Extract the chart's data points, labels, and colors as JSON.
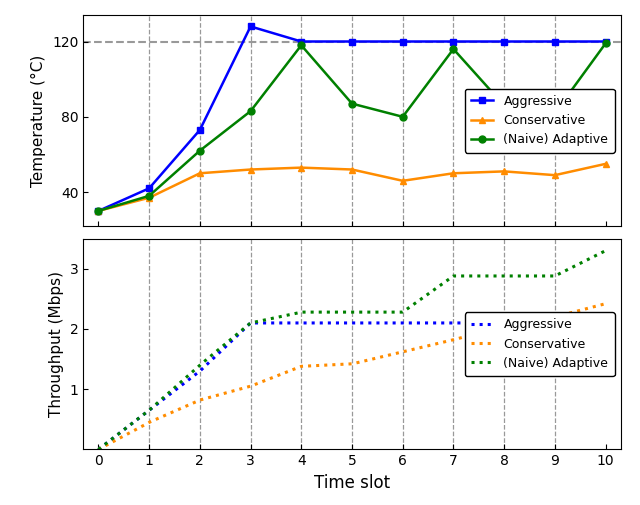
{
  "time_slots": [
    0,
    1,
    2,
    3,
    4,
    5,
    6,
    7,
    8,
    9,
    10
  ],
  "temp_aggressive": [
    30,
    42,
    73,
    128,
    120,
    120,
    120,
    120,
    120,
    120,
    120
  ],
  "temp_conservative": [
    30,
    37,
    50,
    52,
    53,
    52,
    46,
    50,
    51,
    49,
    55
  ],
  "temp_naive_adaptive": [
    30,
    38,
    62,
    83,
    118,
    87,
    80,
    116,
    86,
    82,
    119
  ],
  "temp_ylim": [
    22,
    134
  ],
  "temp_yticks": [
    40,
    80,
    120
  ],
  "temp_threshold": 120,
  "throughput_aggressive": [
    0,
    0.65,
    1.3,
    2.1,
    2.1,
    2.1,
    2.1,
    2.1,
    2.1,
    2.1,
    2.1
  ],
  "throughput_conservative": [
    0,
    0.45,
    0.82,
    1.05,
    1.38,
    1.42,
    1.62,
    1.82,
    2.05,
    2.2,
    2.42
  ],
  "throughput_naive_adaptive": [
    0,
    0.65,
    1.4,
    2.1,
    2.28,
    2.28,
    2.28,
    2.88,
    2.88,
    2.88,
    3.3
  ],
  "throughput_ylim": [
    0,
    3.5
  ],
  "throughput_yticks": [
    1,
    2,
    3
  ],
  "color_aggressive": "#0000FF",
  "color_conservative": "#FF8C00",
  "color_naive_adaptive": "#008000",
  "xlabel": "Time slot",
  "ylabel_throughput": "Throughput (Mbps)",
  "dashed_grid_color": "#999999",
  "threshold_color": "#999999",
  "xlim": [
    -0.3,
    10.3
  ],
  "xticks": [
    0,
    1,
    2,
    3,
    4,
    5,
    6,
    7,
    8,
    9,
    10
  ],
  "grid_vlines": [
    1,
    2,
    3,
    4,
    5,
    6,
    7,
    8,
    9
  ]
}
